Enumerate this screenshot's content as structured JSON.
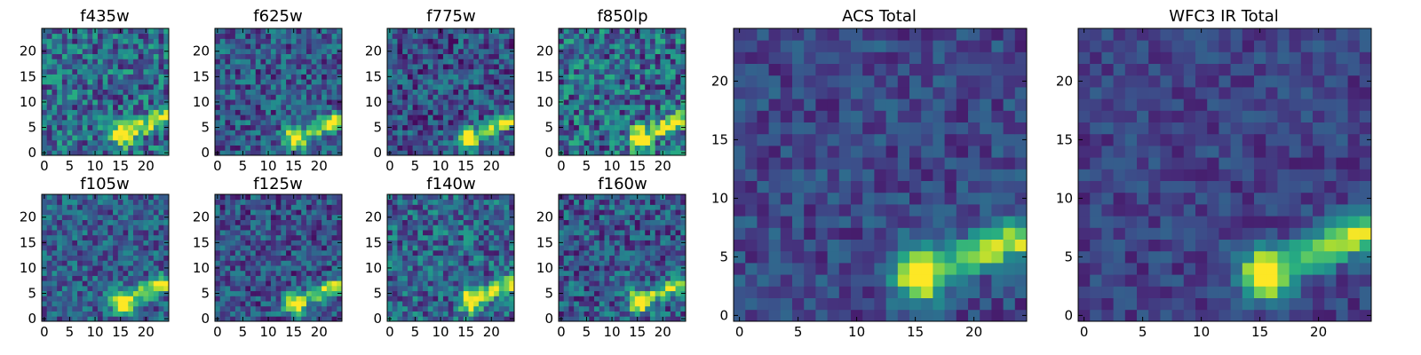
{
  "chart_data": [
    {
      "type": "heatmap",
      "id": "f435w",
      "title": "f435w",
      "xlim": [
        0,
        24
      ],
      "ylim": [
        0,
        24
      ],
      "xticks": [
        0,
        5,
        10,
        15,
        20
      ],
      "yticks": [
        0,
        5,
        10,
        15,
        20
      ],
      "blob_center": [
        15.5,
        3.5
      ],
      "blob_peak": 0.95,
      "background": 0.35,
      "noise": 0.28,
      "trail_to": [
        23.5,
        7.0
      ]
    },
    {
      "type": "heatmap",
      "id": "f625w",
      "title": "f625w",
      "xlim": [
        0,
        24
      ],
      "ylim": [
        0,
        24
      ],
      "xticks": [
        0,
        5,
        10,
        15,
        20
      ],
      "yticks": [
        0,
        5,
        10,
        15,
        20
      ],
      "blob_center": [
        15.5,
        3.0
      ],
      "blob_peak": 0.95,
      "background": 0.28,
      "noise": 0.24,
      "trail_to": [
        23.5,
        6.5
      ]
    },
    {
      "type": "heatmap",
      "id": "f775w",
      "title": "f775w",
      "xlim": [
        0,
        24
      ],
      "ylim": [
        0,
        24
      ],
      "xticks": [
        0,
        5,
        10,
        15,
        20
      ],
      "yticks": [
        0,
        5,
        10,
        15,
        20
      ],
      "blob_center": [
        15.5,
        3.0
      ],
      "blob_peak": 0.95,
      "background": 0.25,
      "noise": 0.24,
      "trail_to": [
        23.5,
        6.5
      ]
    },
    {
      "type": "heatmap",
      "id": "f850lp",
      "title": "f850lp",
      "xlim": [
        0,
        24
      ],
      "ylim": [
        0,
        24
      ],
      "xticks": [
        0,
        5,
        10,
        15,
        20
      ],
      "yticks": [
        0,
        5,
        10,
        15,
        20
      ],
      "blob_center": [
        15.5,
        3.0
      ],
      "blob_peak": 0.95,
      "background": 0.35,
      "noise": 0.3,
      "trail_to": [
        23.5,
        6.5
      ]
    },
    {
      "type": "heatmap",
      "id": "f105w",
      "title": "f105w",
      "xlim": [
        0,
        24
      ],
      "ylim": [
        0,
        24
      ],
      "xticks": [
        0,
        5,
        10,
        15,
        20
      ],
      "yticks": [
        0,
        5,
        10,
        15,
        20
      ],
      "blob_center": [
        15.5,
        3.5
      ],
      "blob_peak": 0.95,
      "background": 0.3,
      "noise": 0.22,
      "trail_to": [
        23.5,
        7.0
      ]
    },
    {
      "type": "heatmap",
      "id": "f125w",
      "title": "f125w",
      "xlim": [
        0,
        24
      ],
      "ylim": [
        0,
        24
      ],
      "xticks": [
        0,
        5,
        10,
        15,
        20
      ],
      "yticks": [
        0,
        5,
        10,
        15,
        20
      ],
      "blob_center": [
        15.5,
        3.0
      ],
      "blob_peak": 0.95,
      "background": 0.25,
      "noise": 0.22,
      "trail_to": [
        23.5,
        6.5
      ]
    },
    {
      "type": "heatmap",
      "id": "f140w",
      "title": "f140w",
      "xlim": [
        0,
        24
      ],
      "ylim": [
        0,
        24
      ],
      "xticks": [
        0,
        5,
        10,
        15,
        20
      ],
      "yticks": [
        0,
        5,
        10,
        15,
        20
      ],
      "blob_center": [
        16.0,
        3.5
      ],
      "blob_peak": 0.95,
      "background": 0.32,
      "noise": 0.25,
      "trail_to": [
        23.5,
        7.0
      ]
    },
    {
      "type": "heatmap",
      "id": "f160w",
      "title": "f160w",
      "xlim": [
        0,
        24
      ],
      "ylim": [
        0,
        24
      ],
      "xticks": [
        0,
        5,
        10,
        15,
        20
      ],
      "yticks": [
        0,
        5,
        10,
        15,
        20
      ],
      "blob_center": [
        15.5,
        3.5
      ],
      "blob_peak": 0.95,
      "background": 0.28,
      "noise": 0.24,
      "trail_to": [
        23.5,
        7.0
      ]
    },
    {
      "type": "heatmap",
      "id": "acs-total",
      "title": "ACS Total",
      "xlim": [
        0,
        24
      ],
      "ylim": [
        0,
        24
      ],
      "xticks": [
        0,
        5,
        10,
        15,
        20
      ],
      "yticks": [
        0,
        5,
        10,
        15,
        20
      ],
      "blob_center": [
        15.5,
        3.5
      ],
      "blob_peak": 1.0,
      "background": 0.22,
      "noise": 0.14,
      "trail_to": [
        23.5,
        6.5
      ]
    },
    {
      "type": "heatmap",
      "id": "wfc3-ir-total",
      "title": "WFC3 IR Total",
      "xlim": [
        0,
        24
      ],
      "ylim": [
        0,
        24
      ],
      "xticks": [
        0,
        5,
        10,
        15,
        20
      ],
      "yticks": [
        0,
        5,
        10,
        15,
        20
      ],
      "blob_center": [
        15.5,
        3.5
      ],
      "blob_peak": 1.0,
      "background": 0.2,
      "noise": 0.12,
      "trail_to": [
        23.5,
        7.0
      ]
    }
  ],
  "colormap": {
    "name": "viridis",
    "stops": [
      "#440154",
      "#472c7a",
      "#3b518b",
      "#2c718e",
      "#21908d",
      "#27ad81",
      "#5cc863",
      "#aadc32",
      "#fde725"
    ]
  }
}
